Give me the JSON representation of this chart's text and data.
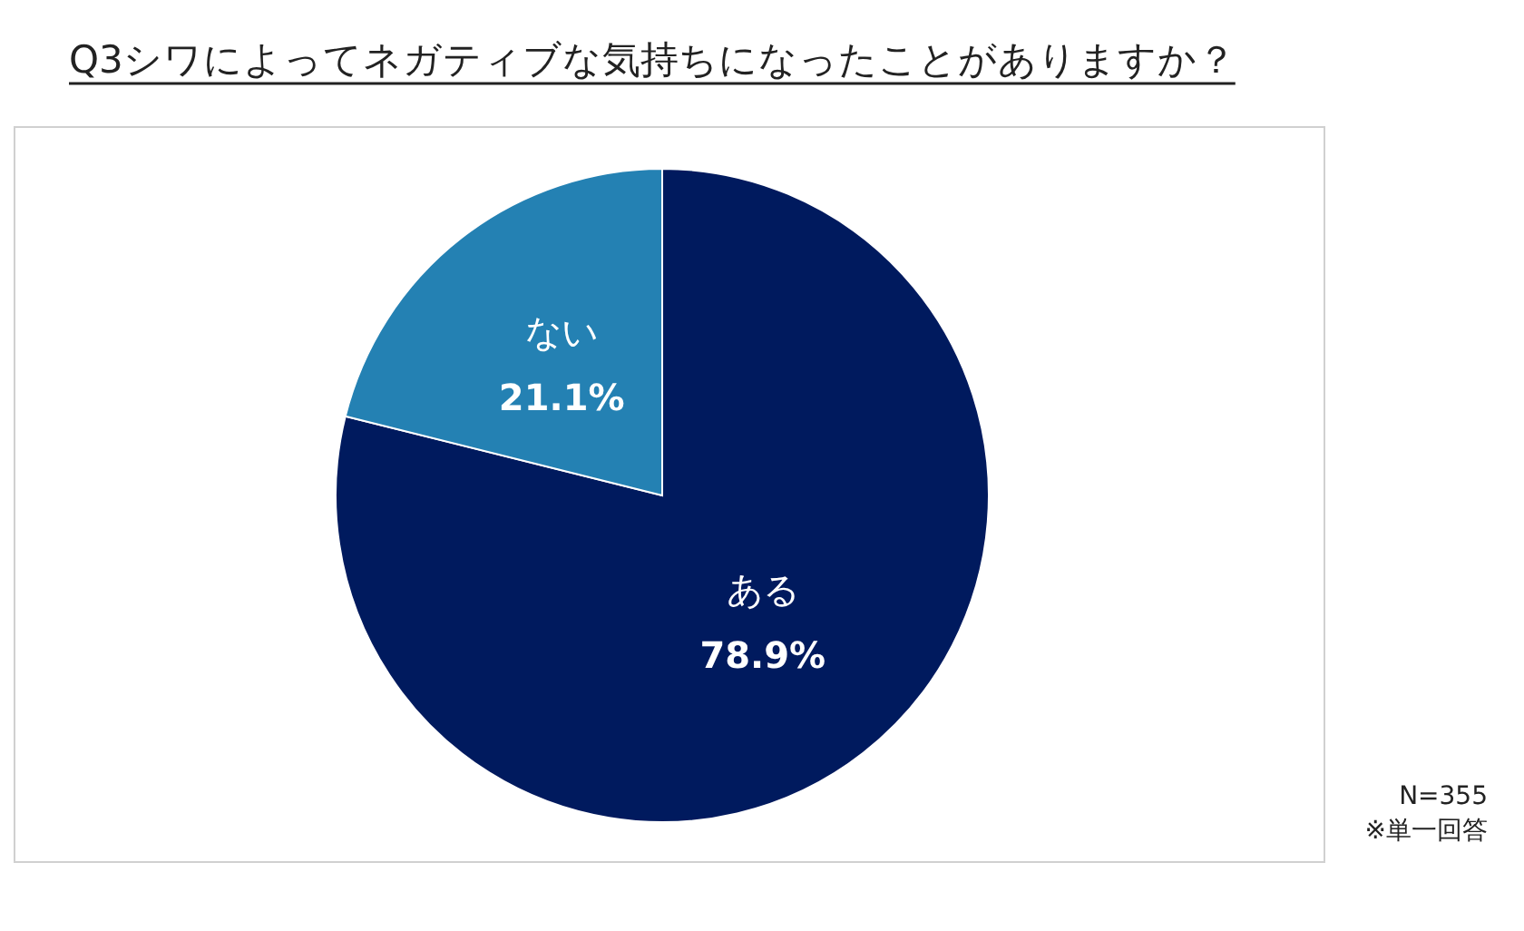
{
  "chart_data": {
    "type": "pie",
    "title": "Q3シワによってネガティブな気持ちになったことがありますか？",
    "categories": [
      "ある",
      "ない"
    ],
    "values": [
      78.9,
      21.1
    ],
    "colors": [
      "#001a5e",
      "#2481b3"
    ],
    "value_labels": [
      "78.9%",
      "21.1%"
    ],
    "annotations": [
      "N=355",
      "※単一回答"
    ]
  }
}
